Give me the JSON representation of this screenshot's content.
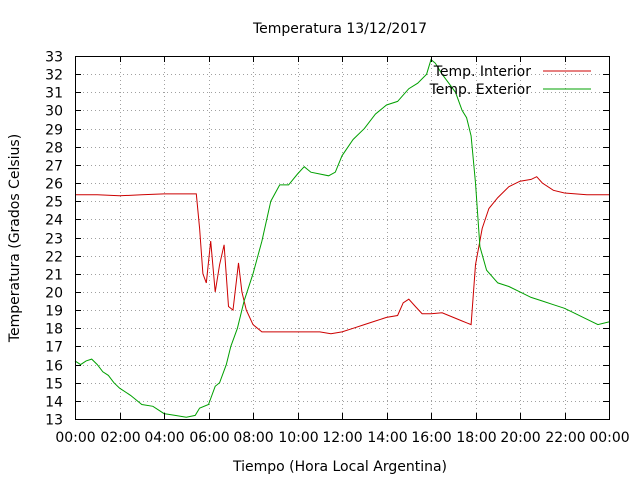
{
  "chart_data": {
    "type": "line",
    "title": "Temperatura 13/12/2017",
    "xlabel": "Tiempo (Hora Local Argentina)",
    "ylabel": "Temperatura (Grados Celsius)",
    "xlim": [
      0,
      24
    ],
    "ylim": [
      13,
      33
    ],
    "grid": true,
    "legend_position": "top-right",
    "x_tick_labels": [
      "00:00",
      "02:00",
      "04:00",
      "06:00",
      "08:00",
      "10:00",
      "12:00",
      "14:00",
      "16:00",
      "18:00",
      "20:00",
      "22:00",
      "00:00"
    ],
    "y_ticks": [
      13,
      14,
      15,
      16,
      17,
      18,
      19,
      20,
      21,
      22,
      23,
      24,
      25,
      26,
      27,
      28,
      29,
      30,
      31,
      32,
      33
    ],
    "series": [
      {
        "name": "Temp. Interior",
        "color": "#cc0000",
        "x": [
          0,
          1,
          2,
          3,
          4,
          5,
          5.45,
          5.6,
          5.75,
          5.9,
          6.1,
          6.3,
          6.5,
          6.7,
          6.9,
          7.1,
          7.35,
          7.5,
          7.7,
          8.0,
          8.4,
          9.0,
          10.0,
          11.0,
          11.5,
          12.0,
          12.5,
          13.0,
          13.5,
          14.0,
          14.5,
          14.75,
          15.0,
          15.3,
          15.6,
          16.0,
          16.5,
          17.0,
          17.4,
          17.6,
          17.8,
          18.0,
          18.3,
          18.6,
          19.0,
          19.5,
          20.0,
          20.5,
          20.75,
          21.0,
          21.5,
          22.0,
          23.0,
          24.0
        ],
        "y": [
          25.35,
          25.35,
          25.3,
          25.35,
          25.4,
          25.4,
          25.4,
          23.5,
          21.0,
          20.5,
          22.8,
          20.0,
          21.5,
          22.6,
          19.2,
          19.0,
          21.6,
          20.0,
          19.0,
          18.2,
          17.8,
          17.8,
          17.8,
          17.8,
          17.7,
          17.8,
          18.0,
          18.2,
          18.4,
          18.6,
          18.7,
          19.4,
          19.6,
          19.2,
          18.8,
          18.8,
          18.85,
          18.6,
          18.4,
          18.3,
          18.2,
          21.5,
          23.5,
          24.6,
          25.2,
          25.8,
          26.1,
          26.2,
          26.35,
          26.0,
          25.6,
          25.45,
          25.35,
          25.35
        ]
      },
      {
        "name": "Temp. Exterior",
        "color": "#00a000",
        "x": [
          0,
          0.25,
          0.5,
          0.75,
          1.0,
          1.25,
          1.5,
          1.75,
          2.0,
          2.5,
          3.0,
          3.5,
          4.0,
          4.5,
          5.0,
          5.4,
          5.6,
          6.0,
          6.3,
          6.5,
          6.8,
          7.0,
          7.3,
          7.6,
          8.0,
          8.4,
          8.8,
          9.2,
          9.6,
          10.0,
          10.3,
          10.6,
          11.0,
          11.4,
          11.7,
          12.0,
          12.5,
          13.0,
          13.5,
          14.0,
          14.5,
          15.0,
          15.4,
          15.8,
          16.0,
          16.2,
          16.5,
          16.8,
          17.1,
          17.4,
          17.6,
          17.8,
          18.0,
          18.2,
          18.5,
          19.0,
          19.5,
          20.0,
          20.5,
          21.0,
          21.5,
          22.0,
          22.5,
          23.0,
          23.5,
          24.0
        ],
        "y": [
          16.2,
          16.0,
          16.2,
          16.3,
          16.0,
          15.6,
          15.4,
          15.0,
          14.7,
          14.3,
          13.8,
          13.7,
          13.3,
          13.2,
          13.1,
          13.2,
          13.6,
          13.8,
          14.8,
          15.0,
          16.0,
          17.0,
          18.0,
          19.5,
          21.0,
          22.8,
          25.0,
          25.9,
          25.9,
          26.5,
          26.9,
          26.6,
          26.5,
          26.4,
          26.6,
          27.5,
          28.4,
          29.0,
          29.8,
          30.3,
          30.5,
          31.2,
          31.5,
          32.0,
          32.8,
          32.6,
          32.0,
          31.5,
          31.0,
          30.0,
          29.6,
          28.6,
          26.0,
          22.5,
          21.2,
          20.5,
          20.3,
          20.0,
          19.7,
          19.5,
          19.3,
          19.1,
          18.8,
          18.5,
          18.2,
          18.35
        ]
      }
    ]
  }
}
